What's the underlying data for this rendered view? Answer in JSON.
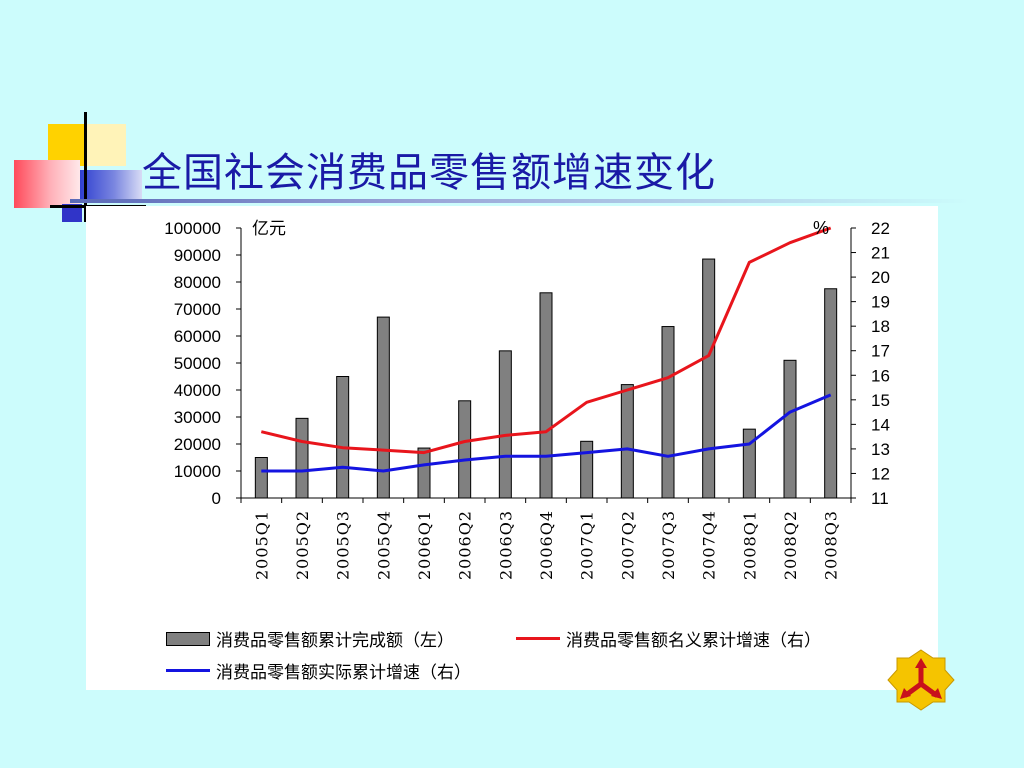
{
  "slide": {
    "title": "全国社会消费品零售额增速变化",
    "background": "#ccfcfc",
    "title_color": "#1a1aa6"
  },
  "legend": {
    "items": [
      {
        "label": "消费品零售额累计完成额（左）",
        "kind": "bar",
        "color": "#808080"
      },
      {
        "label": "消费品零售额名义累计增速（右）",
        "kind": "line",
        "color": "#e8151c"
      },
      {
        "label": "消费品零售额实际累计增速（右）",
        "kind": "line",
        "color": "#1414e0"
      }
    ]
  },
  "logo": {
    "icon": "three-arrows-logo-icon",
    "color": "#f5c400"
  },
  "chart_data": {
    "type": "bar",
    "categories": [
      "2005Q1",
      "2005Q2",
      "2005Q3",
      "2005Q4",
      "2006Q1",
      "2006Q2",
      "2006Q3",
      "2006Q4",
      "2007Q1",
      "2007Q2",
      "2007Q3",
      "2007Q4",
      "2008Q1",
      "2008Q2",
      "2008Q3"
    ],
    "left_axis": {
      "unit_label": "亿元",
      "ylim": [
        0,
        100000
      ],
      "ticks": [
        "0",
        "10000",
        "20000",
        "30000",
        "40000",
        "50000",
        "60000",
        "70000",
        "80000",
        "90000",
        "100000"
      ]
    },
    "right_axis": {
      "unit_label": "%",
      "ylim": [
        11,
        22
      ],
      "ticks": [
        "11",
        "12",
        "13",
        "14",
        "15",
        "16",
        "17",
        "18",
        "19",
        "20",
        "21",
        "22"
      ]
    },
    "series": [
      {
        "name": "消费品零售额累计完成额（左）",
        "type": "bar",
        "axis": "left",
        "color": "#808080",
        "values": [
          15000,
          29500,
          45000,
          67000,
          18500,
          36000,
          54500,
          76000,
          21000,
          42000,
          63500,
          88500,
          25500,
          51000,
          77500
        ]
      },
      {
        "name": "消费品零售额名义累计增速（右）",
        "type": "line",
        "axis": "right",
        "color": "#e8151c",
        "values": [
          13.7,
          13.3,
          13.05,
          12.95,
          12.85,
          13.3,
          13.55,
          13.7,
          14.9,
          15.4,
          15.9,
          16.8,
          20.6,
          21.4,
          22.0
        ]
      },
      {
        "name": "消费品零售额实际累计增速（右）",
        "type": "line",
        "axis": "right",
        "color": "#1414e0",
        "values": [
          12.1,
          12.1,
          12.25,
          12.1,
          12.35,
          12.55,
          12.7,
          12.7,
          12.85,
          13.0,
          12.7,
          13.0,
          13.2,
          14.5,
          15.2
        ]
      }
    ],
    "grid": false
  }
}
